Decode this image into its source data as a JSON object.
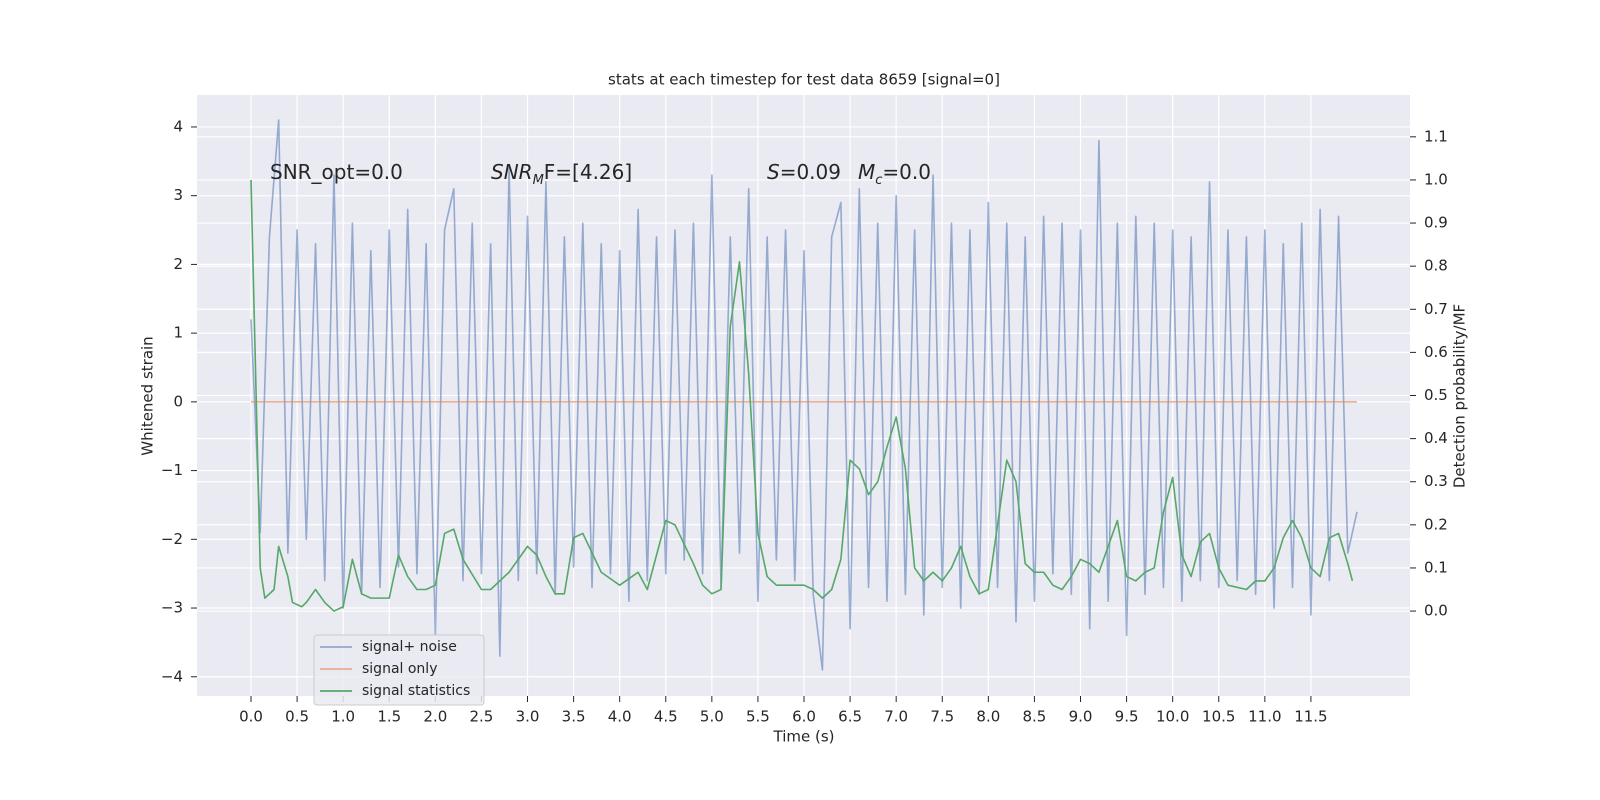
{
  "chart_data": {
    "type": "line",
    "title": "stats at each timestep for test data 8659 [signal=0]",
    "x_label": "Time (s)",
    "y_label": "Whitened strain",
    "y2_label": "Detection probability/MF",
    "xlim": [
      -0.586,
      12.575
    ],
    "ylim": [
      -4.28,
      4.465
    ],
    "y2lim": [
      -0.197,
      1.197
    ],
    "xticks": [
      {
        "value": 0,
        "label": "0.0"
      },
      {
        "value": 0.5,
        "label": "0.5"
      },
      {
        "value": 1,
        "label": "1.0"
      },
      {
        "value": 1.5,
        "label": "1.5"
      },
      {
        "value": 2,
        "label": "2.0"
      },
      {
        "value": 2.5,
        "label": "2.5"
      },
      {
        "value": 3,
        "label": "3.0"
      },
      {
        "value": 3.5,
        "label": "3.5"
      },
      {
        "value": 4,
        "label": "4.0"
      },
      {
        "value": 4.5,
        "label": "4.5"
      },
      {
        "value": 5,
        "label": "5.0"
      },
      {
        "value": 5.5,
        "label": "5.5"
      },
      {
        "value": 6,
        "label": "6.0"
      },
      {
        "value": 6.5,
        "label": "6.5"
      },
      {
        "value": 7,
        "label": "7.0"
      },
      {
        "value": 7.5,
        "label": "7.5"
      },
      {
        "value": 8,
        "label": "8.0"
      },
      {
        "value": 8.5,
        "label": "8.5"
      },
      {
        "value": 9,
        "label": "9.0"
      },
      {
        "value": 9.5,
        "label": "9.5"
      },
      {
        "value": 10,
        "label": "10.0"
      },
      {
        "value": 10.5,
        "label": "10.5"
      },
      {
        "value": 11,
        "label": "11.0"
      },
      {
        "value": 11.5,
        "label": "11.5"
      }
    ],
    "yticks": [
      {
        "value": -4,
        "label": "−4"
      },
      {
        "value": -3,
        "label": "−3"
      },
      {
        "value": -2,
        "label": "−2"
      },
      {
        "value": -1,
        "label": "−1"
      },
      0,
      1,
      2,
      3,
      4
    ],
    "y2ticks": [
      {
        "value": 0,
        "label": "0.0"
      },
      {
        "value": 0.1,
        "label": "0.1"
      },
      {
        "value": 0.2,
        "label": "0.2"
      },
      {
        "value": 0.3,
        "label": "0.3"
      },
      {
        "value": 0.4,
        "label": "0.4"
      },
      {
        "value": 0.5,
        "label": "0.5"
      },
      {
        "value": 0.6,
        "label": "0.6"
      },
      {
        "value": 0.7,
        "label": "0.7"
      },
      {
        "value": 0.8,
        "label": "0.8"
      },
      {
        "value": 0.9,
        "label": "0.9"
      },
      {
        "value": 1.0,
        "label": "1.0"
      },
      {
        "value": 1.1,
        "label": "1.1"
      }
    ],
    "grid": true,
    "legend": "lower left",
    "annotations": [
      {
        "text": "SNR_opt=0.0"
      },
      {
        "var": "SNR",
        "sub": "M",
        "rest": "F=[4.26]"
      },
      {
        "var": "S",
        "rest": "=0.09"
      },
      {
        "var": "M",
        "sub": "c",
        "rest": "=0.0"
      }
    ],
    "series": [
      {
        "name": "signal+ noise",
        "color": "#4c72b0",
        "opacity": 0.55,
        "x": [
          0,
          0.1,
          0.2,
          0.3,
          0.4,
          0.5,
          0.6,
          0.7,
          0.8,
          0.9,
          1,
          1.1,
          1.2,
          1.3,
          1.4,
          1.5,
          1.6,
          1.7,
          1.8,
          1.9,
          2,
          2.1,
          2.2,
          2.3,
          2.4,
          2.5,
          2.6,
          2.7,
          2.8,
          2.9,
          3,
          3.1,
          3.2,
          3.3,
          3.4,
          3.5,
          3.6,
          3.7,
          3.8,
          3.9,
          4,
          4.1,
          4.2,
          4.3,
          4.4,
          4.5,
          4.6,
          4.7,
          4.8,
          4.9,
          5,
          5.1,
          5.2,
          5.3,
          5.4,
          5.5,
          5.6,
          5.7,
          5.8,
          5.9,
          6,
          6.1,
          6.2,
          6.3,
          6.4,
          6.5,
          6.6,
          6.7,
          6.8,
          6.9,
          7,
          7.1,
          7.2,
          7.3,
          7.4,
          7.5,
          7.6,
          7.7,
          7.8,
          7.9,
          8,
          8.1,
          8.2,
          8.3,
          8.4,
          8.5,
          8.6,
          8.7,
          8.8,
          8.9,
          9,
          9.1,
          9.2,
          9.3,
          9.4,
          9.5,
          9.6,
          9.7,
          9.8,
          9.9,
          10,
          10.1,
          10.2,
          10.3,
          10.4,
          10.5,
          10.6,
          10.7,
          10.8,
          10.9,
          11,
          11.1,
          11.2,
          11.3,
          11.4,
          11.5,
          11.6,
          11.7,
          11.8,
          11.9,
          12
        ],
        "values": [
          1.2,
          -1.9,
          2.4,
          4.1,
          -2.2,
          2.5,
          -2.0,
          2.3,
          -2.6,
          3.3,
          -3.0,
          2.6,
          -2.8,
          2.2,
          -2.7,
          2.5,
          -2.4,
          2.8,
          -2.5,
          2.3,
          -3.4,
          2.5,
          3.1,
          -2.6,
          2.6,
          -2.5,
          2.3,
          -3.7,
          3.4,
          -2.6,
          2.7,
          -2.5,
          3.2,
          -2.8,
          2.4,
          -2.4,
          2.6,
          -2.7,
          2.3,
          -2.5,
          2.2,
          -2.9,
          2.8,
          -2.6,
          2.4,
          -2.5,
          2.5,
          -2.3,
          2.6,
          -2.5,
          3.3,
          -2.7,
          2.4,
          -2.2,
          3.1,
          -2.9,
          2.4,
          -2.3,
          2.5,
          -2.6,
          2.2,
          -2.8,
          -3.9,
          2.4,
          2.9,
          -3.3,
          3.1,
          -2.7,
          2.6,
          -2.9,
          3.0,
          -2.8,
          2.5,
          -3.1,
          3.3,
          -2.7,
          2.6,
          -3.0,
          2.5,
          -2.8,
          2.9,
          -2.7,
          2.6,
          -3.2,
          2.4,
          -2.9,
          2.7,
          -2.5,
          2.6,
          -2.8,
          2.5,
          -3.3,
          3.8,
          -2.9,
          2.6,
          -3.4,
          2.7,
          -2.8,
          2.6,
          -2.7,
          2.5,
          -2.9,
          2.4,
          -2.6,
          3.2,
          -2.7,
          2.5,
          -2.6,
          2.4,
          -2.8,
          2.5,
          -3.0,
          2.3,
          -2.7,
          2.6,
          -3.1,
          2.8,
          -2.6,
          2.7,
          -2.2,
          -1.6
        ]
      },
      {
        "name": "signal only",
        "color": "#dd8452",
        "opacity": 0.6,
        "x": [
          0,
          12
        ],
        "values": [
          0,
          0
        ]
      },
      {
        "name": "signal statistics",
        "color": "#55a868",
        "opacity": 1,
        "axis": "y2",
        "x": [
          0,
          0.1,
          0.15,
          0.25,
          0.3,
          0.4,
          0.45,
          0.55,
          0.6,
          0.7,
          0.8,
          0.9,
          1.0,
          1.1,
          1.2,
          1.3,
          1.4,
          1.5,
          1.6,
          1.7,
          1.8,
          1.9,
          2.0,
          2.1,
          2.2,
          2.3,
          2.5,
          2.6,
          2.8,
          3.0,
          3.1,
          3.2,
          3.3,
          3.4,
          3.5,
          3.6,
          3.8,
          4.0,
          4.2,
          4.3,
          4.5,
          4.6,
          4.8,
          4.9,
          5.0,
          5.1,
          5.2,
          5.3,
          5.4,
          5.5,
          5.6,
          5.7,
          5.9,
          6.0,
          6.1,
          6.2,
          6.3,
          6.4,
          6.5,
          6.6,
          6.7,
          6.8,
          6.9,
          7.0,
          7.1,
          7.2,
          7.3,
          7.4,
          7.5,
          7.6,
          7.7,
          7.8,
          7.9,
          8.0,
          8.1,
          8.2,
          8.3,
          8.4,
          8.5,
          8.6,
          8.7,
          8.8,
          8.9,
          9.0,
          9.1,
          9.2,
          9.3,
          9.4,
          9.5,
          9.6,
          9.7,
          9.8,
          9.9,
          10.0,
          10.1,
          10.2,
          10.3,
          10.4,
          10.5,
          10.6,
          10.8,
          10.9,
          11.0,
          11.1,
          11.2,
          11.3,
          11.4,
          11.5,
          11.6,
          11.7,
          11.8,
          11.9,
          11.95
        ],
        "values": [
          1.0,
          0.1,
          0.03,
          0.05,
          0.15,
          0.08,
          0.02,
          0.01,
          0.02,
          0.05,
          0.02,
          0.0,
          0.01,
          0.12,
          0.04,
          0.03,
          0.03,
          0.03,
          0.13,
          0.08,
          0.05,
          0.05,
          0.06,
          0.18,
          0.19,
          0.12,
          0.05,
          0.05,
          0.09,
          0.15,
          0.13,
          0.08,
          0.04,
          0.04,
          0.17,
          0.18,
          0.09,
          0.06,
          0.09,
          0.05,
          0.21,
          0.2,
          0.11,
          0.06,
          0.04,
          0.05,
          0.66,
          0.81,
          0.55,
          0.18,
          0.08,
          0.06,
          0.06,
          0.06,
          0.05,
          0.03,
          0.05,
          0.12,
          0.35,
          0.33,
          0.27,
          0.3,
          0.38,
          0.45,
          0.33,
          0.1,
          0.07,
          0.09,
          0.07,
          0.1,
          0.15,
          0.08,
          0.04,
          0.05,
          0.2,
          0.35,
          0.3,
          0.11,
          0.09,
          0.09,
          0.06,
          0.05,
          0.08,
          0.12,
          0.11,
          0.09,
          0.15,
          0.21,
          0.08,
          0.07,
          0.09,
          0.1,
          0.23,
          0.31,
          0.13,
          0.08,
          0.16,
          0.18,
          0.1,
          0.06,
          0.05,
          0.07,
          0.07,
          0.1,
          0.17,
          0.21,
          0.17,
          0.1,
          0.08,
          0.17,
          0.18,
          0.11,
          0.07
        ]
      }
    ]
  }
}
